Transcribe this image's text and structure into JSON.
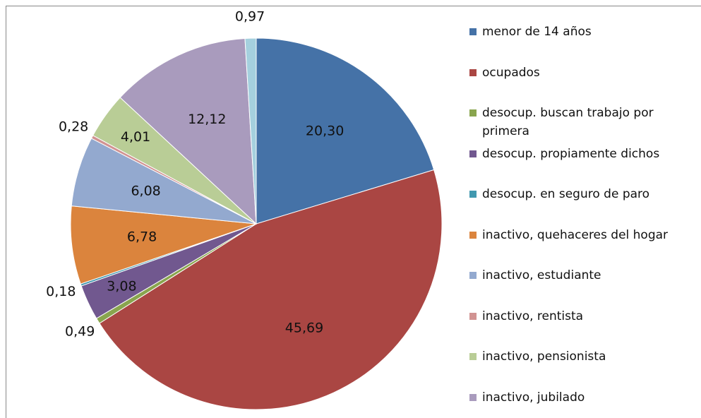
{
  "chart_data": {
    "type": "pie",
    "categories": [
      "menor de 14 años",
      "ocupados",
      "desocup. buscan trabajo por primera",
      "desocup. propiamente dichos",
      "desocup. en seguro de paro",
      "inactivo, quehaceres del hogar",
      "inactivo, estudiante",
      "inactivo, rentista",
      "inactivo, pensionista",
      "inactivo, jubilado",
      null
    ],
    "values": [
      20.3,
      45.69,
      0.49,
      3.08,
      0.18,
      6.78,
      6.08,
      0.28,
      4.01,
      12.12,
      0.97
    ],
    "value_labels": [
      "20,30",
      "45,69",
      "0,49",
      "3,08",
      "0,18",
      "6,78",
      "6,08",
      "0,28",
      "4,01",
      "12,12",
      "0,97"
    ],
    "colors": [
      "#4572A7",
      "#AA4643",
      "#89A54E",
      "#71588F",
      "#4198AF",
      "#DB843D",
      "#93A9CF",
      "#D19392",
      "#B9CD96",
      "#A99BBD",
      "#A5D0DE"
    ],
    "legend": "right"
  }
}
